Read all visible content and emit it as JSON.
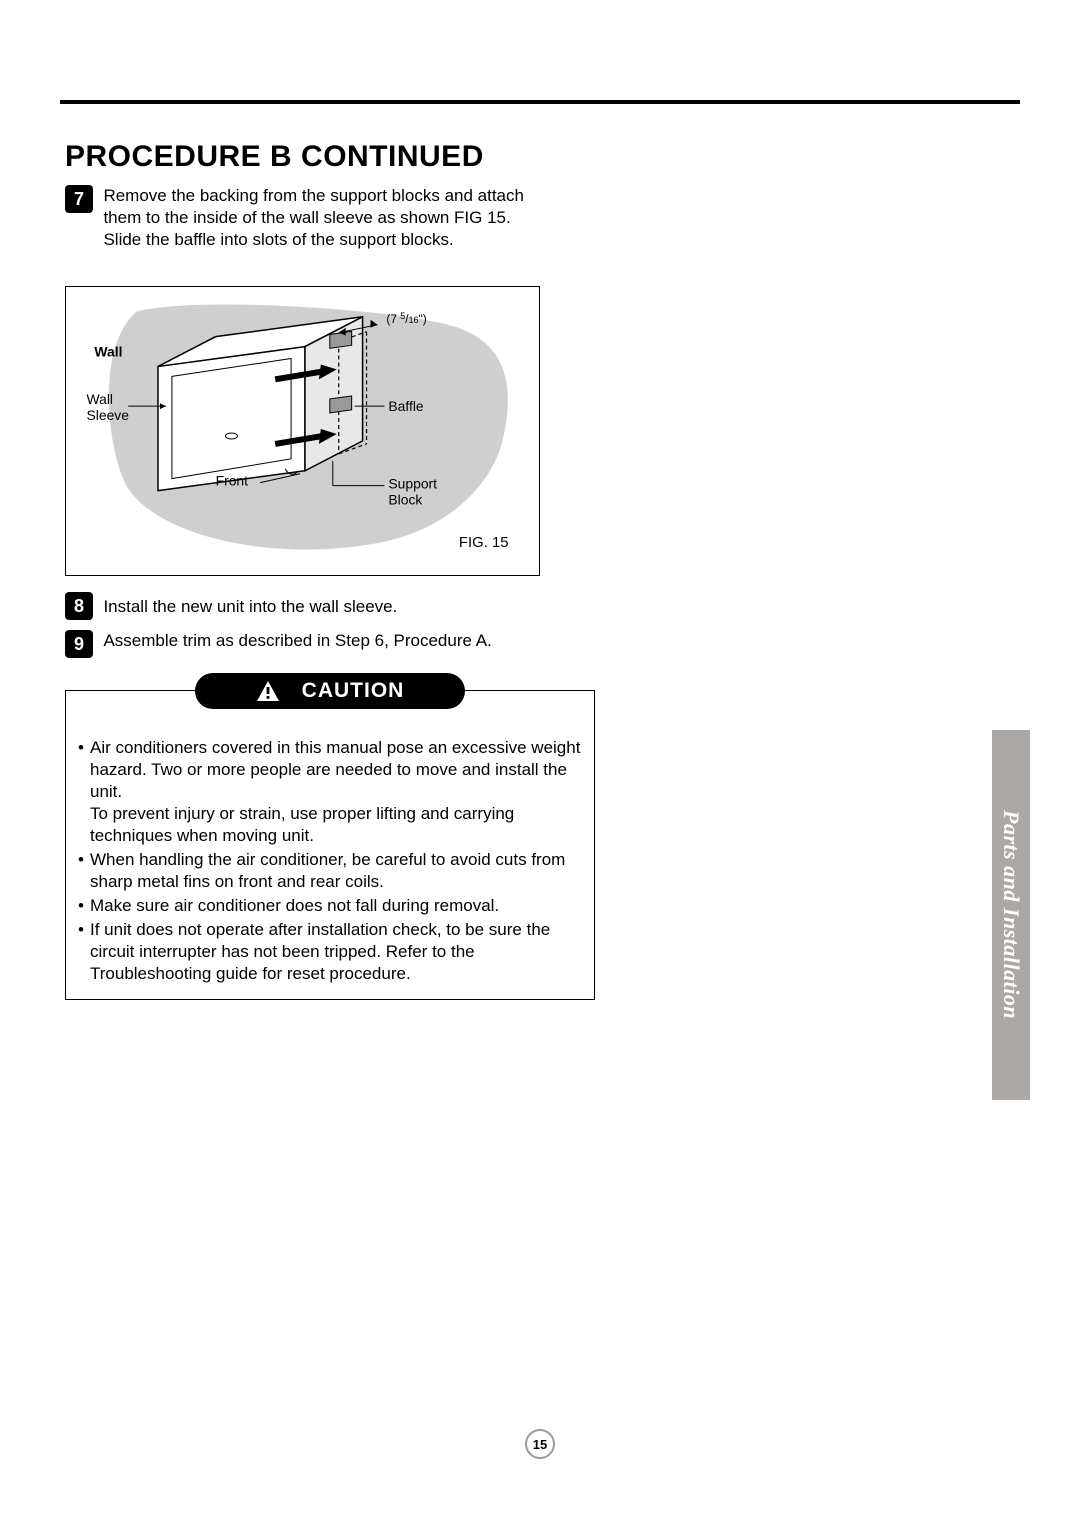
{
  "heading": "PROCEDURE B CONTINUED",
  "steps": {
    "s7": {
      "num": "7",
      "text": "Remove the backing from the support blocks and attach them to the inside of the wall sleeve as shown FIG 15. Slide the baffle into slots of the support blocks."
    },
    "s8": {
      "num": "8",
      "text": "Install the new unit into the wall sleeve."
    },
    "s9": {
      "num": "9",
      "text": "Assemble trim as described in Step 6, Procedure A."
    }
  },
  "figure": {
    "labels": {
      "wall": "Wall",
      "wall_sleeve_l1": "Wall",
      "wall_sleeve_l2": "Sleeve",
      "front": "Front",
      "baffle": "Baffle",
      "support_l1": "Support",
      "support_l2": "Block",
      "dim_prefix": "(7 ",
      "dim_sup": "5",
      "dim_slash": "/",
      "dim_sub": "16",
      "dim_suffix": "\")"
    },
    "caption": "FIG. 15",
    "colors": {
      "wall_fill": "#cfcfcf",
      "sleeve_fill": "#ffffff",
      "baffle_fill": "#b8b8b8",
      "line": "#000000",
      "dash": "#000000"
    },
    "fontsize_label": 14
  },
  "caution": {
    "label": "CAUTION",
    "items": [
      "Air conditioners covered in this manual pose an excessive weight hazard. Two or more people are needed to move and install the unit.\nTo prevent injury or strain, use proper lifting and carrying techniques when moving unit.",
      "When handling the air conditioner, be careful to avoid cuts from sharp metal fins on front and rear coils.",
      "Make sure air conditioner does not fall during removal.",
      "If unit does not operate after installation check, to be sure the circuit interrupter has not been tripped. Refer to the Troubleshooting guide for reset procedure."
    ]
  },
  "side_tab": "Parts and Installation",
  "page_number": "15",
  "colors": {
    "tab_bg": "#aba8a6",
    "tab_text": "#ffffff"
  }
}
